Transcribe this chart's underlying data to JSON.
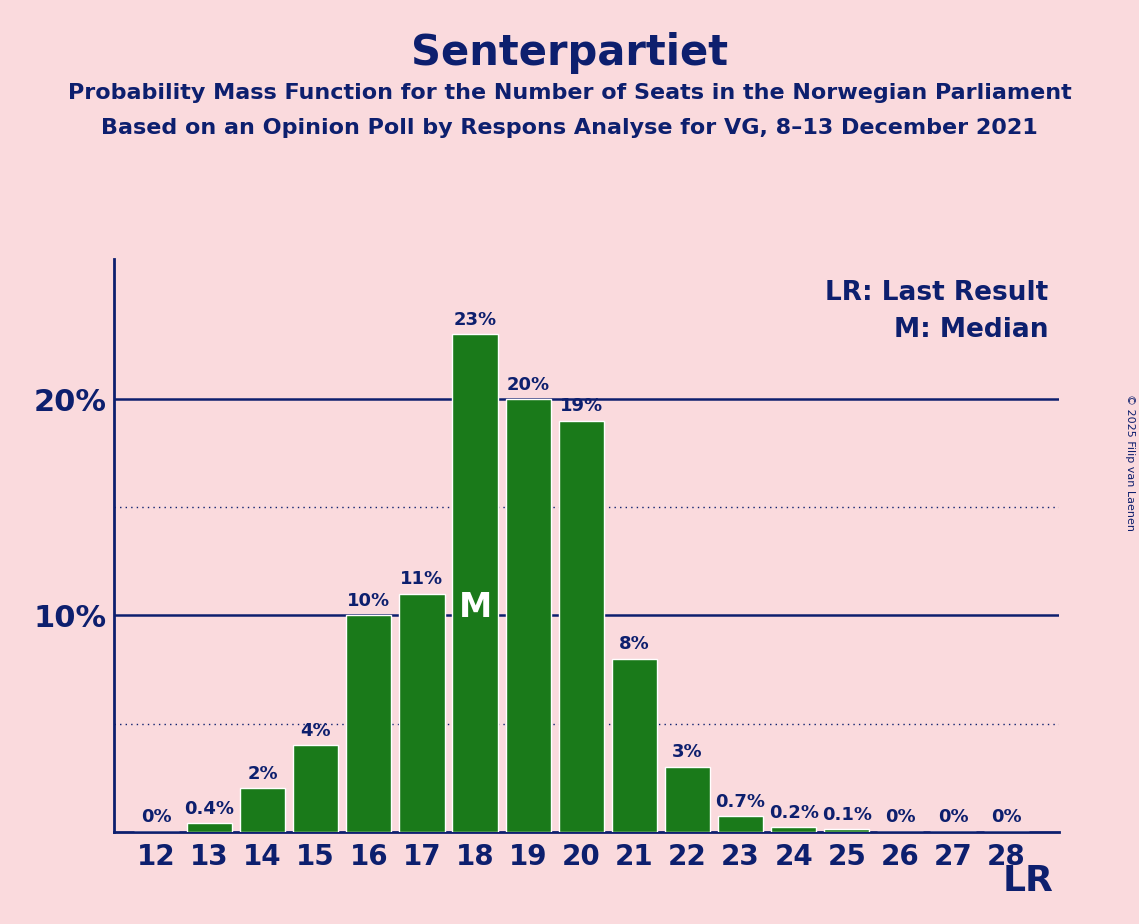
{
  "title": "Senterpartiet",
  "subtitle1": "Probability Mass Function for the Number of Seats in the Norwegian Parliament",
  "subtitle2": "Based on an Opinion Poll by Respons Analyse for VG, 8–13 December 2021",
  "copyright": "© 2025 Filip van Laenen",
  "seats": [
    12,
    13,
    14,
    15,
    16,
    17,
    18,
    19,
    20,
    21,
    22,
    23,
    24,
    25,
    26,
    27,
    28
  ],
  "probabilities": [
    0.0,
    0.4,
    2.0,
    4.0,
    10.0,
    11.0,
    23.0,
    20.0,
    19.0,
    8.0,
    3.0,
    0.7,
    0.2,
    0.1,
    0.0,
    0.0,
    0.0
  ],
  "bar_color": "#1a7a1a",
  "bar_edge_color": "#ffffff",
  "background_color": "#fadadd",
  "text_color": "#0d1f6e",
  "median_seat": 18,
  "last_result_seat": 28,
  "solid_yticks": [
    10,
    20
  ],
  "dotted_yticks": [
    5,
    15
  ],
  "legend_lr": "LR: Last Result",
  "legend_m": "M: Median",
  "lr_label": "LR",
  "m_label": "M",
  "title_fontsize": 30,
  "subtitle_fontsize": 16,
  "bar_label_fontsize": 13,
  "axis_label_fontsize": 20,
  "legend_fontsize": 19,
  "ytick_fontsize": 22,
  "lr_fontsize": 26
}
